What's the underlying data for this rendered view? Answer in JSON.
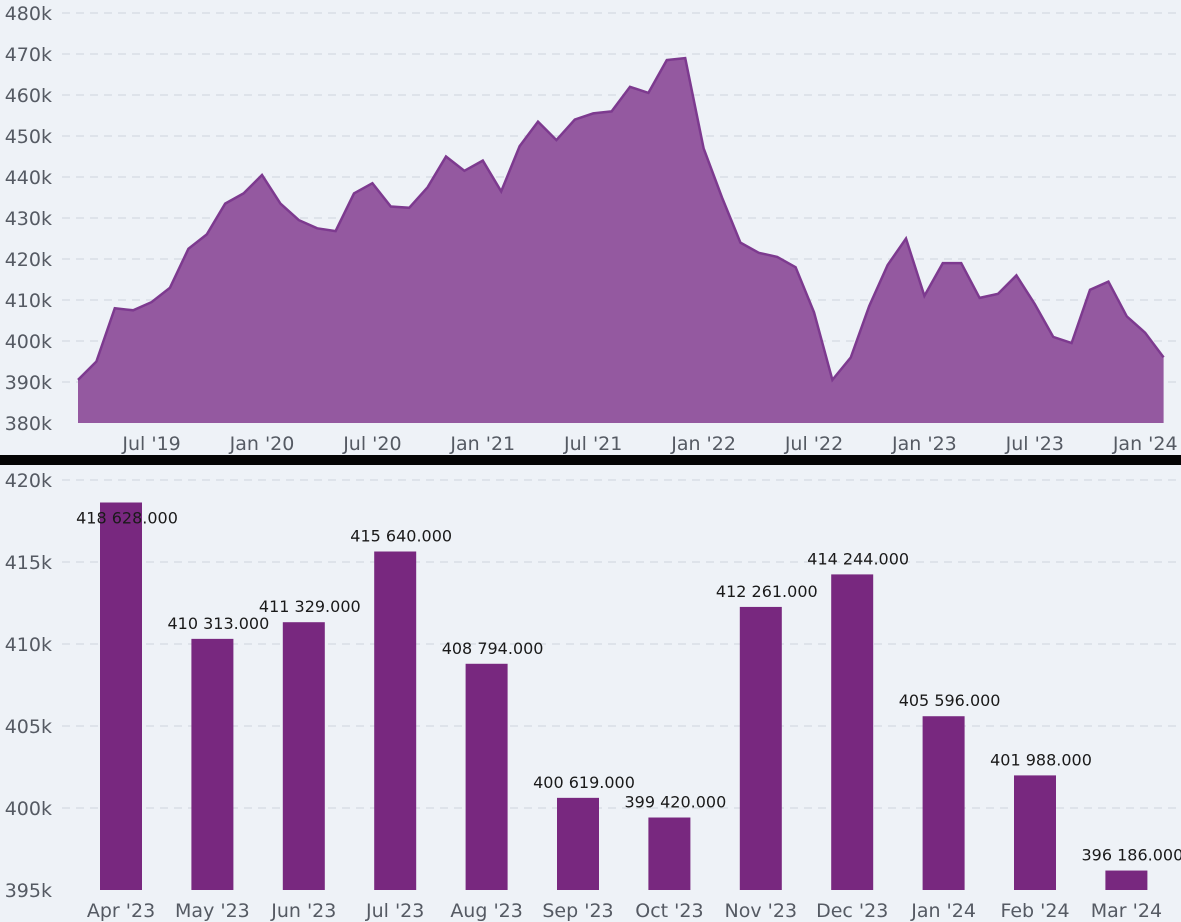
{
  "chart_data": [
    {
      "type": "area",
      "title": "",
      "xlabel": "",
      "ylabel": "",
      "ylim": [
        380000,
        480000
      ],
      "y_tick_labels": [
        "380k",
        "390k",
        "400k",
        "410k",
        "420k",
        "430k",
        "440k",
        "450k",
        "460k",
        "470k",
        "480k"
      ],
      "y_ticks": [
        380000,
        390000,
        400000,
        410000,
        420000,
        430000,
        440000,
        450000,
        460000,
        470000,
        480000
      ],
      "x_tick_labels": [
        "Jul '19",
        "Jan '20",
        "Jul '20",
        "Jan '21",
        "Jul '21",
        "Jan '22",
        "Jul '22",
        "Jan '23",
        "Jul '23",
        "Jan '24"
      ],
      "x_tick_months": [
        6,
        12,
        18,
        24,
        30,
        36,
        42,
        48,
        54,
        60
      ],
      "x_months_from_jan_2019": [
        2,
        3,
        4,
        5,
        6,
        7,
        8,
        9,
        10,
        11,
        12,
        13,
        14,
        15,
        16,
        17,
        18,
        19,
        20,
        21,
        22,
        23,
        24,
        25,
        26,
        27,
        28,
        29,
        30,
        31,
        32,
        33,
        34,
        35,
        36,
        37,
        38,
        39,
        40,
        41,
        42,
        43,
        44,
        45,
        46,
        47,
        48,
        49,
        50,
        51,
        52,
        53,
        54,
        55,
        56,
        57,
        58,
        59,
        60,
        61
      ],
      "values": [
        390500,
        395000,
        408000,
        407500,
        409500,
        413000,
        422500,
        426000,
        433500,
        436000,
        440500,
        433500,
        429500,
        427500,
        426800,
        436000,
        438500,
        432800,
        432500,
        437500,
        445000,
        441500,
        444000,
        436500,
        447500,
        453500,
        449000,
        454000,
        455500,
        456000,
        462000,
        460500,
        468500,
        469000,
        447000,
        435000,
        424000,
        421500,
        420500,
        418000,
        407000,
        390500,
        396000,
        408500,
        418500,
        425000,
        411000,
        419000,
        419000,
        410500,
        411500,
        416000,
        409000,
        401000,
        399500,
        412500,
        414500,
        406000,
        402000,
        396000
      ],
      "grid": true,
      "color": "#7d3a8f"
    },
    {
      "type": "bar",
      "title": "",
      "xlabel": "",
      "ylabel": "",
      "ylim": [
        395000,
        420000
      ],
      "y_tick_labels": [
        "395k",
        "400k",
        "405k",
        "410k",
        "415k",
        "420k"
      ],
      "y_ticks": [
        395000,
        400000,
        405000,
        410000,
        415000,
        420000
      ],
      "categories": [
        "Apr '23",
        "May '23",
        "Jun '23",
        "Jul '23",
        "Aug '23",
        "Sep '23",
        "Oct '23",
        "Nov '23",
        "Dec '23",
        "Jan '24",
        "Feb '24",
        "Mar '24"
      ],
      "values": [
        418628,
        410313,
        411329,
        415640,
        408794,
        400619,
        399420,
        412261,
        414244,
        405596,
        401988,
        396186
      ],
      "data_labels": [
        "418 628.000",
        "410 313.000",
        "411 329.000",
        "415 640.000",
        "408 794.000",
        "400 619.000",
        "399 420.000",
        "412 261.000",
        "414 244.000",
        "405 596.000",
        "401 988.000",
        "396 186.000"
      ],
      "grid": true,
      "color": "#78287f"
    }
  ]
}
